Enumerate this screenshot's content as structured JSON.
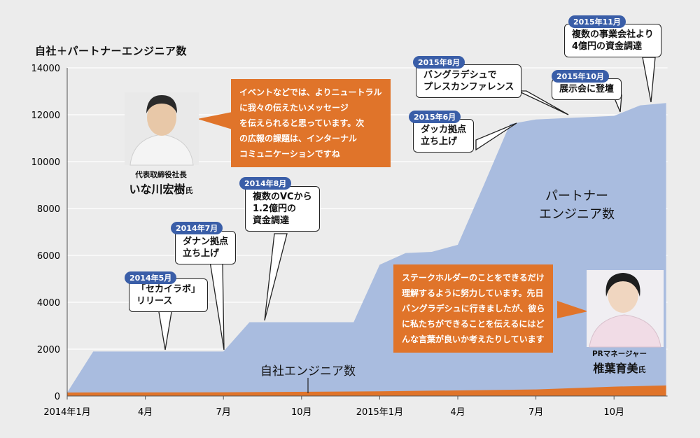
{
  "title": "自社＋パートナーエンジニア数",
  "chart_data": {
    "type": "area",
    "ylim": [
      0,
      14000
    ],
    "yticks": [
      "0",
      "2000",
      "4000",
      "6000",
      "8000",
      "10000",
      "12000",
      "14000"
    ],
    "xlabels": [
      {
        "label": "2014年1月",
        "month": 0
      },
      {
        "label": "4月",
        "month": 3
      },
      {
        "label": "7月",
        "month": 6
      },
      {
        "label": "10月",
        "month": 9
      },
      {
        "label": "2015年1月",
        "month": 12
      },
      {
        "label": "4月",
        "month": 15
      },
      {
        "label": "7月",
        "month": 18
      },
      {
        "label": "10月",
        "month": 21
      }
    ],
    "series": [
      {
        "name": "パートナーエンジニア数",
        "color": "#a9bcdf",
        "points": [
          [
            0,
            150
          ],
          [
            1,
            1900
          ],
          [
            2,
            1900
          ],
          [
            3,
            1900
          ],
          [
            4,
            1900
          ],
          [
            5,
            1900
          ],
          [
            6,
            1900
          ],
          [
            7,
            3150
          ],
          [
            8,
            3150
          ],
          [
            9,
            3150
          ],
          [
            10,
            3150
          ],
          [
            11,
            3150
          ],
          [
            12,
            5600
          ],
          [
            13,
            6100
          ],
          [
            14,
            6150
          ],
          [
            15,
            6450
          ],
          [
            16,
            9000
          ],
          [
            17,
            11600
          ],
          [
            18,
            11800
          ],
          [
            19,
            11850
          ],
          [
            20,
            11900
          ],
          [
            21,
            11950
          ],
          [
            22,
            12400
          ],
          [
            23,
            12500
          ]
        ]
      },
      {
        "name": "自社エンジニア数",
        "color": "#e0742a",
        "points": [
          [
            0,
            150
          ],
          [
            6,
            160
          ],
          [
            12,
            200
          ],
          [
            18,
            280
          ],
          [
            21,
            400
          ],
          [
            23,
            450
          ]
        ]
      }
    ],
    "annotations": [
      {
        "date": "2014年5月",
        "text": "「セカイラボ」\nリリース"
      },
      {
        "date": "2014年7月",
        "text": "ダナン拠点\n立ち上げ"
      },
      {
        "date": "2014年8月",
        "text": "複数のVCから\n1.2億円の\n資金調達"
      },
      {
        "date": "2015年6月",
        "text": "ダッカ拠点\n立ち上げ"
      },
      {
        "date": "2015年8月",
        "text": "バングラデシュで\nプレスカンファレンス"
      },
      {
        "date": "2015年10月",
        "text": "展示会に登壇"
      },
      {
        "date": "2015年11月",
        "text": "複数の事業会社より\n4億円の資金調達"
      }
    ],
    "series_labels": {
      "partner": "パートナー\nエンジニア数",
      "own": "自社エンジニア数"
    }
  },
  "quotes": {
    "ceo": "イベントなどでは、よりニュートラル\nに我々の伝えたいメッセージ\nを伝えられると思っています。次\nの広報の課題は、インターナル\nコミュニケーションですね",
    "pr": "ステークホルダーのことをできるだけ\n理解するように努力しています。先日\nバングラデシュに行きましたが、彼ら\nに私たちができることを伝えるにはど\nんな言葉が良いか考えたりしています"
  },
  "people": {
    "ceo": {
      "role": "代表取締役社長",
      "name": "いな川宏樹",
      "suffix": "氏"
    },
    "pr": {
      "role": "PRマネージャー",
      "name": "椎葉育美",
      "suffix": "氏"
    }
  },
  "colors": {
    "partner": "#a9bcdf",
    "own": "#e0742a",
    "badge": "#3a5ea8",
    "background": "#ececec"
  }
}
